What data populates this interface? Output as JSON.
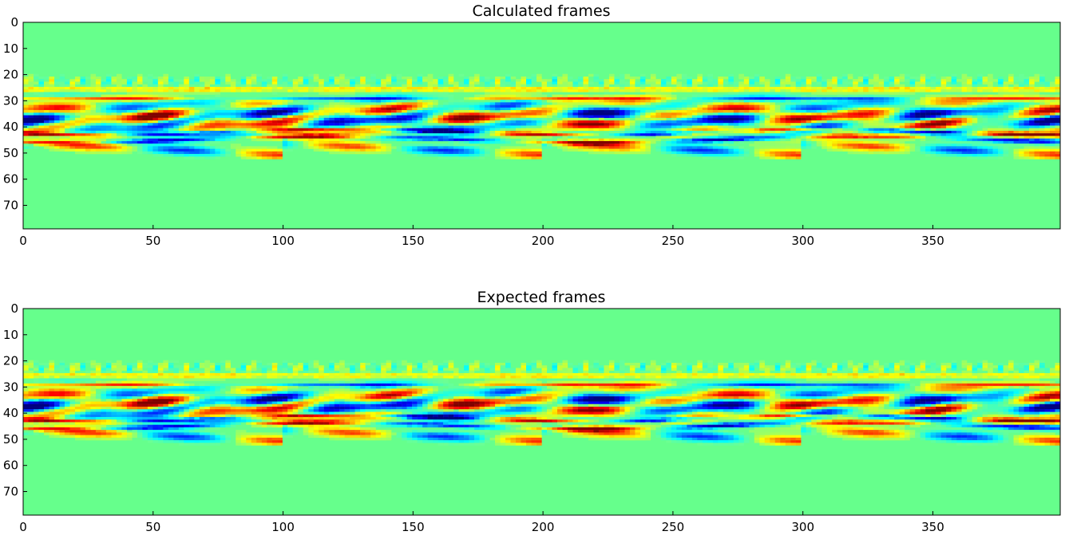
{
  "chart_data": [
    {
      "type": "heatmap",
      "title": "Calculated frames",
      "xlabel": "",
      "ylabel": "",
      "xlim": [
        0,
        399
      ],
      "ylim": [
        79,
        0
      ],
      "x_ticks": [
        0,
        50,
        100,
        150,
        200,
        250,
        300,
        350
      ],
      "y_ticks": [
        0,
        10,
        20,
        30,
        40,
        50,
        60,
        70
      ],
      "rows": 80,
      "columns": 400,
      "colormap": "jet",
      "background_value_color": "#66ff8c",
      "grid": false,
      "legend": "none"
    },
    {
      "type": "heatmap",
      "title": "Expected frames",
      "xlabel": "",
      "ylabel": "",
      "xlim": [
        0,
        399
      ],
      "ylim": [
        79,
        0
      ],
      "x_ticks": [
        0,
        50,
        100,
        150,
        200,
        250,
        300,
        350
      ],
      "y_ticks": [
        0,
        10,
        20,
        30,
        40,
        50,
        60,
        70
      ],
      "rows": 80,
      "columns": 400,
      "colormap": "jet",
      "background_value_color": "#66ff8c",
      "grid": false,
      "legend": "none"
    }
  ]
}
